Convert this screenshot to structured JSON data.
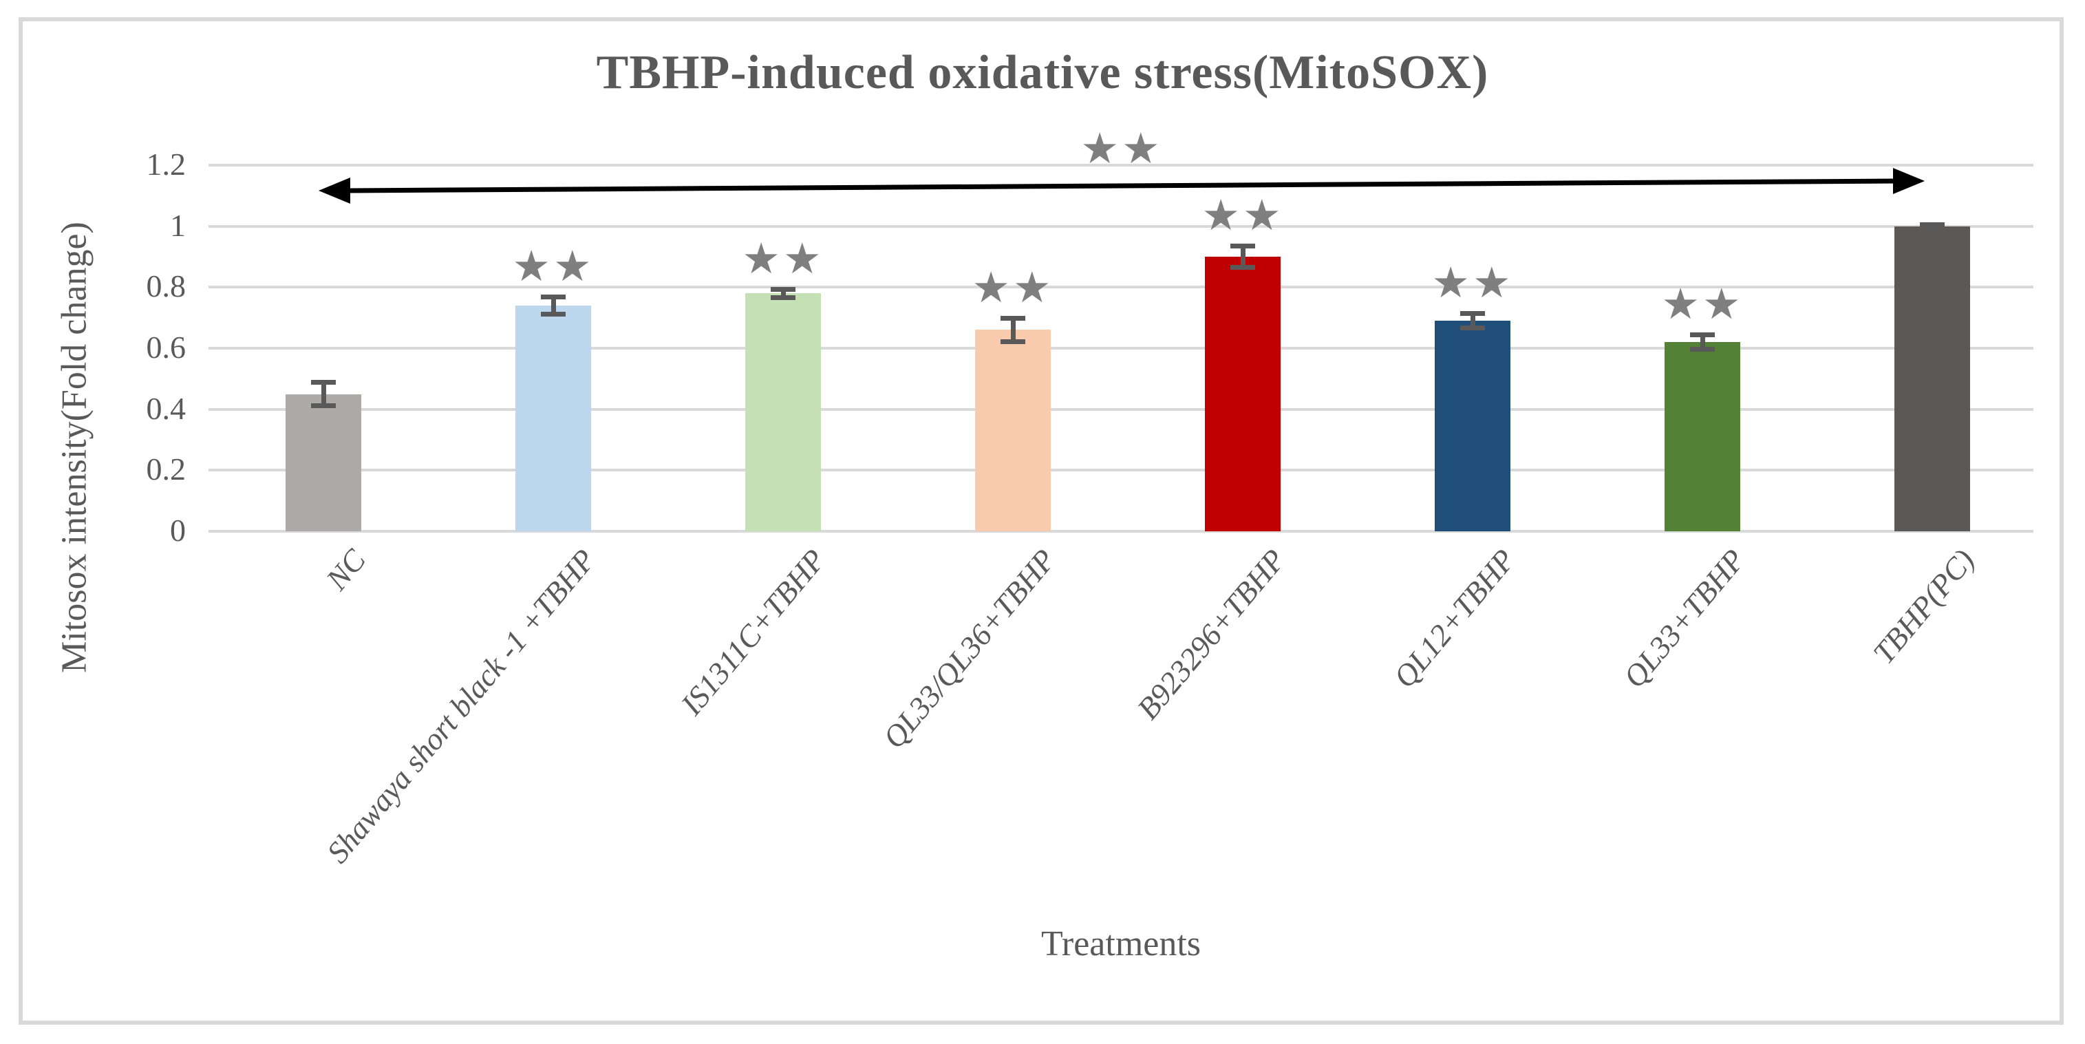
{
  "figure": {
    "background_color": "#FFFFFF",
    "border_color": "#D9D9D9",
    "gridline_color": "#D9D9D9",
    "text_color": "#595959",
    "star_color": "#7F7F7F",
    "error_bar_color": "#595959",
    "arrow_color": "#000000"
  },
  "chart_data": {
    "type": "bar",
    "title": "TBHP-induced oxidative stress(MitoSOX)",
    "xlabel": "Treatments",
    "ylabel": "Mitosox intensity(Fold change)",
    "ylim": [
      0,
      1.2
    ],
    "ytick_step": 0.2,
    "yticks": [
      "0",
      "0.2",
      "0.4",
      "0.6",
      "0.8",
      "1",
      "1.2"
    ],
    "grid": true,
    "legend": "none",
    "categories": [
      "NC",
      "Shawaya short black -1 +TBHP",
      "IS1311C+TBHP",
      "QL33/QL36+TBHP",
      "B923296+TBHP",
      "QL12+TBHP",
      "QL33+TBHP",
      "TBHP(PC)"
    ],
    "values": [
      0.45,
      0.74,
      0.78,
      0.66,
      0.9,
      0.69,
      0.62,
      1.0
    ],
    "errors": [
      0.04,
      0.03,
      0.015,
      0.04,
      0.035,
      0.025,
      0.025,
      0.006
    ],
    "bar_colors": [
      "#AEAAA9",
      "#BDD7EE",
      "#C5E0B4",
      "#F8CBAD",
      "#C00000",
      "#1F4E79",
      "#538135",
      "#5B5957"
    ],
    "significance": [
      "",
      "★★",
      "★★",
      "★★",
      "★★",
      "★★",
      "★★",
      ""
    ],
    "overall_significance": {
      "symbol": "★★",
      "from_category": "NC",
      "to_category": "TBHP(PC)",
      "style": "double-headed-arrow"
    }
  }
}
